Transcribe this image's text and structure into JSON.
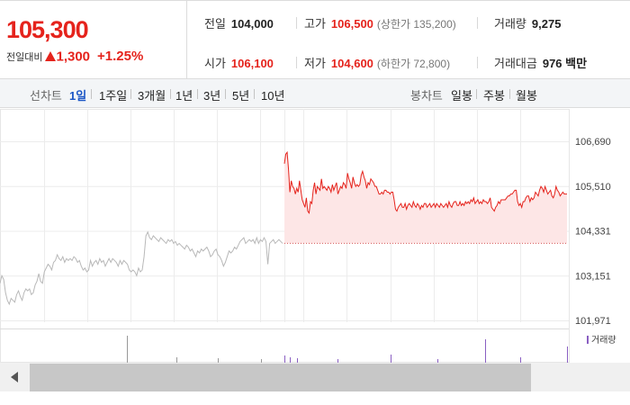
{
  "quote": {
    "price": "105,300",
    "change_label": "전일대비",
    "change_amount": "1,300",
    "change_percent": "+1.25%",
    "direction": "up",
    "up_color": "#e5231c"
  },
  "stats": {
    "prev_close": {
      "label": "전일",
      "value": "104,000"
    },
    "high": {
      "label": "고가",
      "value": "106,500",
      "sub": "(상한가 135,200)"
    },
    "volume": {
      "label": "거래량",
      "value": "9,275"
    },
    "open": {
      "label": "시가",
      "value": "106,100"
    },
    "low": {
      "label": "저가",
      "value": "104,600",
      "sub": "(하한가 72,800)"
    },
    "turnover": {
      "label": "거래대금",
      "value": "976 백만"
    }
  },
  "line_chart_bar": {
    "label": "선차트",
    "options": [
      "1일",
      "1주일",
      "3개월",
      "1년",
      "3년",
      "5년",
      "10년"
    ],
    "active": "1일"
  },
  "candle_chart_bar": {
    "label": "봉차트",
    "options": [
      "일봉",
      "주봉",
      "월봉"
    ]
  },
  "chart_data": {
    "type": "line",
    "y_ticks": [
      "106,690",
      "105,510",
      "104,331",
      "103,151",
      "101,971"
    ],
    "ylim": [
      101971,
      106690
    ],
    "reference_price": 104000,
    "grid": true,
    "series": [
      {
        "segment": "previous",
        "color": "#b8b8b8",
        "values": [
          102950,
          103150,
          103050,
          102700,
          102500,
          102400,
          102550,
          102500,
          102450,
          102650,
          102750,
          102600,
          102500,
          102700,
          102800,
          102750,
          102800,
          102650,
          102700,
          102900,
          103000,
          103200,
          103000,
          102950,
          103250,
          103350,
          103450,
          103400,
          103300,
          103500,
          103550,
          103700,
          103600,
          103550,
          103650,
          103500,
          103600,
          103550,
          103600,
          103550,
          103650,
          103600,
          103500,
          103550,
          103400,
          103300,
          103350,
          103250,
          103300,
          103550,
          103400,
          103500,
          103550,
          103450,
          103600,
          103500,
          103550,
          103400,
          103500,
          103600,
          103500,
          103600,
          103550,
          103500,
          103400,
          103550,
          103450,
          103550,
          103500,
          103450,
          103300,
          103250,
          103300,
          103250,
          103150,
          103350,
          103250,
          103300,
          103650,
          104200,
          104300,
          104150,
          104100,
          104200,
          104150,
          104100,
          104050,
          104150,
          104100,
          104050,
          104000,
          104100,
          104050,
          104100,
          104000,
          104050,
          103950,
          104000,
          103950,
          103900,
          103850,
          103950,
          103900,
          103800,
          103850,
          103750,
          103650,
          103800,
          103750,
          103850,
          103800,
          103850,
          103900,
          103800,
          103650,
          103700,
          103800,
          103850,
          103700,
          103650,
          103550,
          103400,
          103500,
          103650,
          103800,
          103750,
          103800,
          103900,
          103850,
          103950,
          104050,
          104100,
          104150,
          104000,
          104050,
          104100,
          104050,
          104100,
          104000,
          104150,
          104000,
          104100,
          104050,
          104150,
          104050,
          103450,
          104000,
          104050,
          104100,
          104000,
          104050,
          104100,
          104050,
          104000
        ]
      },
      {
        "segment": "today",
        "color": "#e5231c",
        "values": [
          106100,
          106350,
          106400,
          105950,
          105350,
          105650,
          105500,
          105450,
          105300,
          105450,
          105350,
          105650,
          105400,
          105150,
          105050,
          104950,
          105200,
          104850,
          104800,
          105100,
          105050,
          105400,
          105600,
          105300,
          105500,
          105450,
          105400,
          105700,
          105450,
          105500,
          105450,
          105400,
          105500,
          105450,
          105350,
          105550,
          105400,
          105500,
          105600,
          105300,
          105400,
          105500,
          105450,
          105600,
          105550,
          105450,
          105850,
          105700,
          105600,
          105450,
          105750,
          105600,
          105500,
          105550,
          105500,
          105550,
          105800,
          105900,
          105750,
          105650,
          105450,
          105600,
          105550,
          105700,
          105650,
          105600,
          105500,
          105500,
          105400,
          105300,
          105300,
          105350,
          105300,
          105400,
          105400,
          105350,
          105350,
          105300,
          105350,
          105350,
          105150,
          104900,
          104850,
          104950,
          105000,
          105050,
          104950,
          104950,
          105050,
          104900,
          105000,
          105050,
          105000,
          104950,
          105100,
          105000,
          104950,
          105050,
          105000,
          104900,
          105000,
          104950,
          105050,
          105050,
          104950,
          105000,
          105050,
          104950,
          105000,
          105050,
          104950,
          105050,
          105000,
          104950,
          105050,
          105000,
          104950,
          105000,
          105050,
          104950,
          105100,
          105000,
          104950,
          105050,
          105100,
          105100,
          105000,
          105000,
          105100,
          105000,
          105050,
          105000,
          105100,
          105050,
          105100,
          105050,
          105150,
          105100,
          105200,
          105050,
          105100,
          105150,
          105050,
          105100,
          105050,
          105150,
          105100,
          105100,
          105050,
          105100,
          105200,
          104950,
          104900,
          104850,
          104950,
          105000,
          105100,
          105050,
          105150,
          105150,
          105150,
          105150,
          105200,
          105250,
          105250,
          105300,
          105300,
          105350,
          105400,
          105400,
          105100,
          105000,
          105050,
          104950,
          105100,
          105100,
          105200,
          105250,
          105250,
          105100,
          105200,
          105150,
          105200,
          105350,
          105300,
          105250,
          105400,
          105500,
          105450,
          105350,
          105500,
          105400,
          105300,
          105350,
          105400,
          105250,
          105200,
          105300,
          105500,
          105400,
          105350,
          105250,
          105300,
          105350,
          105300,
          105300,
          105300
        ]
      }
    ],
    "volume_legend": "거래량",
    "volume_color": "#8a5fc2"
  },
  "scrollbar": {
    "left_arrow": "scroll-left",
    "thumb_fraction": 0.84
  }
}
